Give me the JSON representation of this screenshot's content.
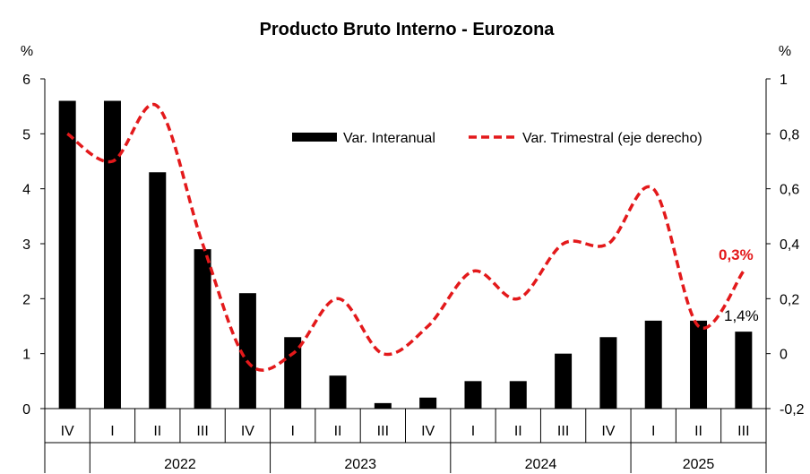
{
  "chart_data": {
    "type": "bar+line",
    "title": "Producto Bruto Interno - Eurozona",
    "y_left_label": "%",
    "y_right_label": "%",
    "y_left_range": [
      0,
      6
    ],
    "y_left_ticks": [
      "0",
      "1",
      "2",
      "3",
      "4",
      "5",
      "6"
    ],
    "y_right_range": [
      -0.2,
      1
    ],
    "y_right_ticks": [
      "-0,2",
      "0",
      "0,2",
      "0,4",
      "0,6",
      "0,8",
      "1"
    ],
    "quarters": [
      "IV",
      "I",
      "II",
      "III",
      "IV",
      "I",
      "II",
      "III",
      "IV",
      "I",
      "II",
      "III",
      "IV",
      "I",
      "II",
      "III"
    ],
    "years": [
      {
        "label": "2022",
        "span": 4
      },
      {
        "label": "2023",
        "span": 4
      },
      {
        "label": "2024",
        "span": 4
      },
      {
        "label": "2025",
        "span": 3
      }
    ],
    "series": [
      {
        "name": "Var. Interanual",
        "kind": "bar",
        "axis": "left",
        "color": "#000000",
        "values": [
          5.6,
          5.6,
          4.3,
          2.9,
          2.1,
          1.3,
          0.6,
          0.1,
          0.2,
          0.5,
          0.5,
          1.0,
          1.3,
          1.6,
          1.6,
          1.4
        ]
      },
      {
        "name": "Var. Trimestral (eje derecho)",
        "kind": "line",
        "style": "dashed",
        "axis": "right",
        "color": "#e3191b",
        "values": [
          0.8,
          0.7,
          0.9,
          0.4,
          -0.03,
          0.0,
          0.2,
          0.0,
          0.1,
          0.3,
          0.2,
          0.4,
          0.4,
          0.6,
          0.1,
          0.3
        ]
      }
    ],
    "annotations": [
      {
        "text": "1,4%",
        "series": "Var. Interanual",
        "index": 15
      },
      {
        "text": "0,3%",
        "series": "Var. Trimestral (eje derecho)",
        "index": 15
      }
    ]
  }
}
